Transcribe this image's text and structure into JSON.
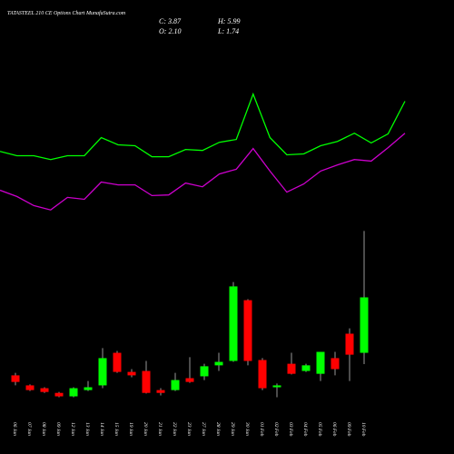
{
  "chart_data": {
    "type": "candlestick",
    "title": "TATASTEEL 210 CE Options Chart MunafaSutra.com",
    "info_texts": [
      "C: 3.87",
      "H: 5.99",
      "O: 2.10",
      "L: 1.74"
    ],
    "categories": [
      "06 Jan",
      "07 Jan",
      "08 Jan",
      "09 Jan",
      "12 Jan",
      "13 Jan",
      "14 Jan",
      "15 Jan",
      "19 Jan",
      "20 Jan",
      "21 Jan",
      "22 Jan",
      "23 Jan",
      "27 Jan",
      "28 Jan",
      "29 Jan",
      "30 Jan",
      "01 Feb",
      "02 Feb",
      "03 Feb",
      "04 Feb",
      "05 Feb",
      "06 Feb",
      "09 Feb",
      "10 Feb"
    ],
    "open": [
      1.38,
      1.06,
      0.97,
      0.82,
      0.71,
      0.91,
      1.06,
      2.1,
      1.49,
      1.52,
      0.91,
      0.91,
      1.29,
      1.35,
      1.7,
      1.84,
      3.78,
      1.87,
      1.0,
      1.75,
      1.52,
      1.43,
      1.93,
      2.71,
      2.1
    ],
    "high": [
      1.46,
      1.09,
      1.0,
      0.85,
      1.0,
      1.2,
      2.25,
      2.16,
      1.58,
      1.84,
      0.97,
      1.46,
      1.96,
      1.75,
      2.1,
      4.36,
      3.81,
      1.93,
      1.12,
      2.1,
      1.75,
      2.13,
      2.13,
      2.88,
      5.99
    ],
    "low": [
      1.06,
      0.88,
      0.82,
      0.68,
      0.68,
      0.88,
      0.97,
      1.46,
      1.32,
      0.8,
      0.74,
      0.88,
      1.14,
      1.23,
      1.52,
      1.81,
      1.7,
      0.91,
      0.68,
      1.41,
      1.49,
      1.2,
      1.38,
      1.2,
      1.74
    ],
    "close": [
      1.17,
      0.91,
      0.85,
      0.71,
      0.97,
      1.0,
      1.93,
      1.49,
      1.38,
      0.82,
      0.82,
      1.23,
      1.17,
      1.67,
      1.81,
      4.22,
      1.84,
      0.97,
      1.06,
      1.43,
      1.7,
      2.13,
      1.58,
      2.04,
      3.87
    ],
    "up_color": "#00ff00",
    "down_color": "#ff0000",
    "lines": [
      {
        "color": "#00ff00",
        "values": [
          8.53,
          8.39,
          8.39,
          8.27,
          8.39,
          8.39,
          8.97,
          8.74,
          8.71,
          8.36,
          8.36,
          8.59,
          8.56,
          8.82,
          8.91,
          10.36,
          8.97,
          8.42,
          8.45,
          8.71,
          8.85,
          9.11,
          8.8,
          9.09,
          10.13
        ]
      },
      {
        "color": "#cc00cc",
        "values": [
          7.29,
          7.09,
          6.8,
          6.66,
          7.06,
          7.0,
          7.55,
          7.46,
          7.46,
          7.12,
          7.14,
          7.52,
          7.4,
          7.81,
          7.96,
          8.62,
          7.9,
          7.23,
          7.49,
          7.9,
          8.1,
          8.27,
          8.22,
          8.65,
          9.11
        ]
      }
    ],
    "ylim": [
      0,
      13
    ]
  }
}
